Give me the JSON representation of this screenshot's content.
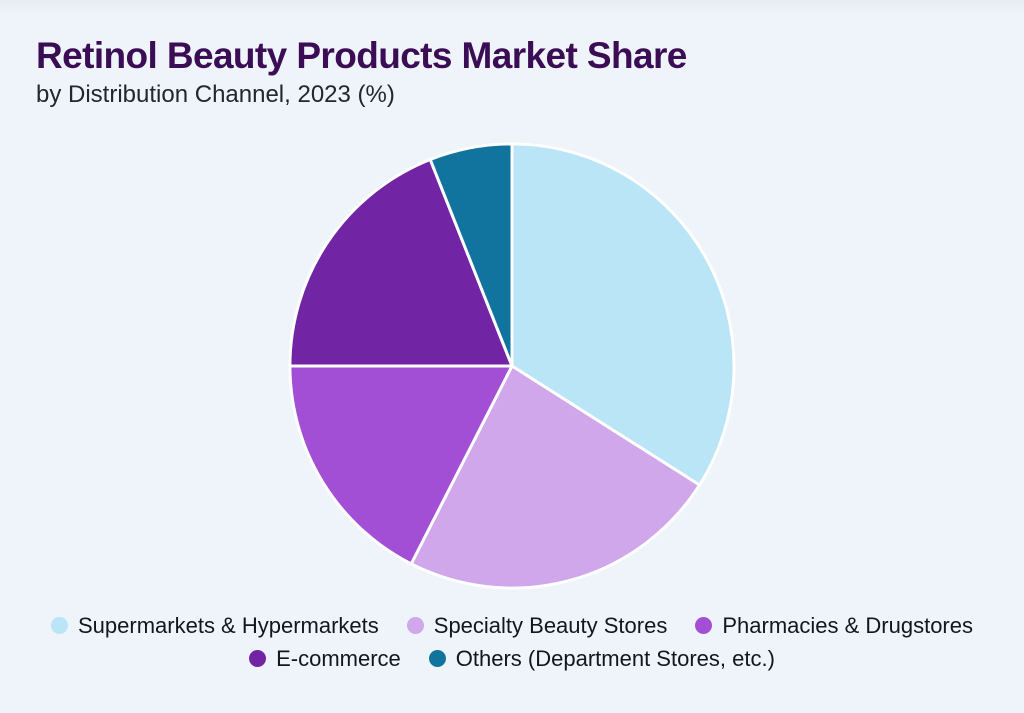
{
  "page": {
    "background": "#eef4f9"
  },
  "header": {
    "title": "Retinol Beauty Products Market Share",
    "subtitle": "by Distribution Channel, 2023 (%)",
    "title_color": "#3a0d54",
    "subtitle_color": "#25252e"
  },
  "chart_data": {
    "type": "pie",
    "title": "Retinol Beauty Products Market Share",
    "subtitle": "by Distribution Channel, 2023 (%)",
    "unit": "%",
    "year": "2023",
    "start_angle_deg": 0,
    "direction": "clockwise",
    "legend_position": "bottom",
    "categories": [
      "Supermarkets & Hypermarkets",
      "Specialty Beauty Stores",
      "Pharmacies & Drugstores",
      "E-commerce",
      "Others (Department Stores, etc.)"
    ],
    "values": [
      34,
      23.5,
      17.5,
      19,
      6
    ],
    "slices": [
      {
        "label": "Supermarkets & Hypermarkets",
        "value": 34,
        "color": "#b9e5f6"
      },
      {
        "label": "Specialty Beauty Stores",
        "value": 23.5,
        "color": "#cfa7ea"
      },
      {
        "label": "Pharmacies & Drugstores",
        "value": 17.5,
        "color": "#a24fd6"
      },
      {
        "label": "E-commerce",
        "value": 19,
        "color": "#7124a4"
      },
      {
        "label": "Others (Department Stores, etc.)",
        "value": 6,
        "color": "#10749e"
      }
    ],
    "layout": {
      "legend_rows": [
        3,
        2
      ],
      "slice_gap_color": "#ffffff"
    }
  }
}
